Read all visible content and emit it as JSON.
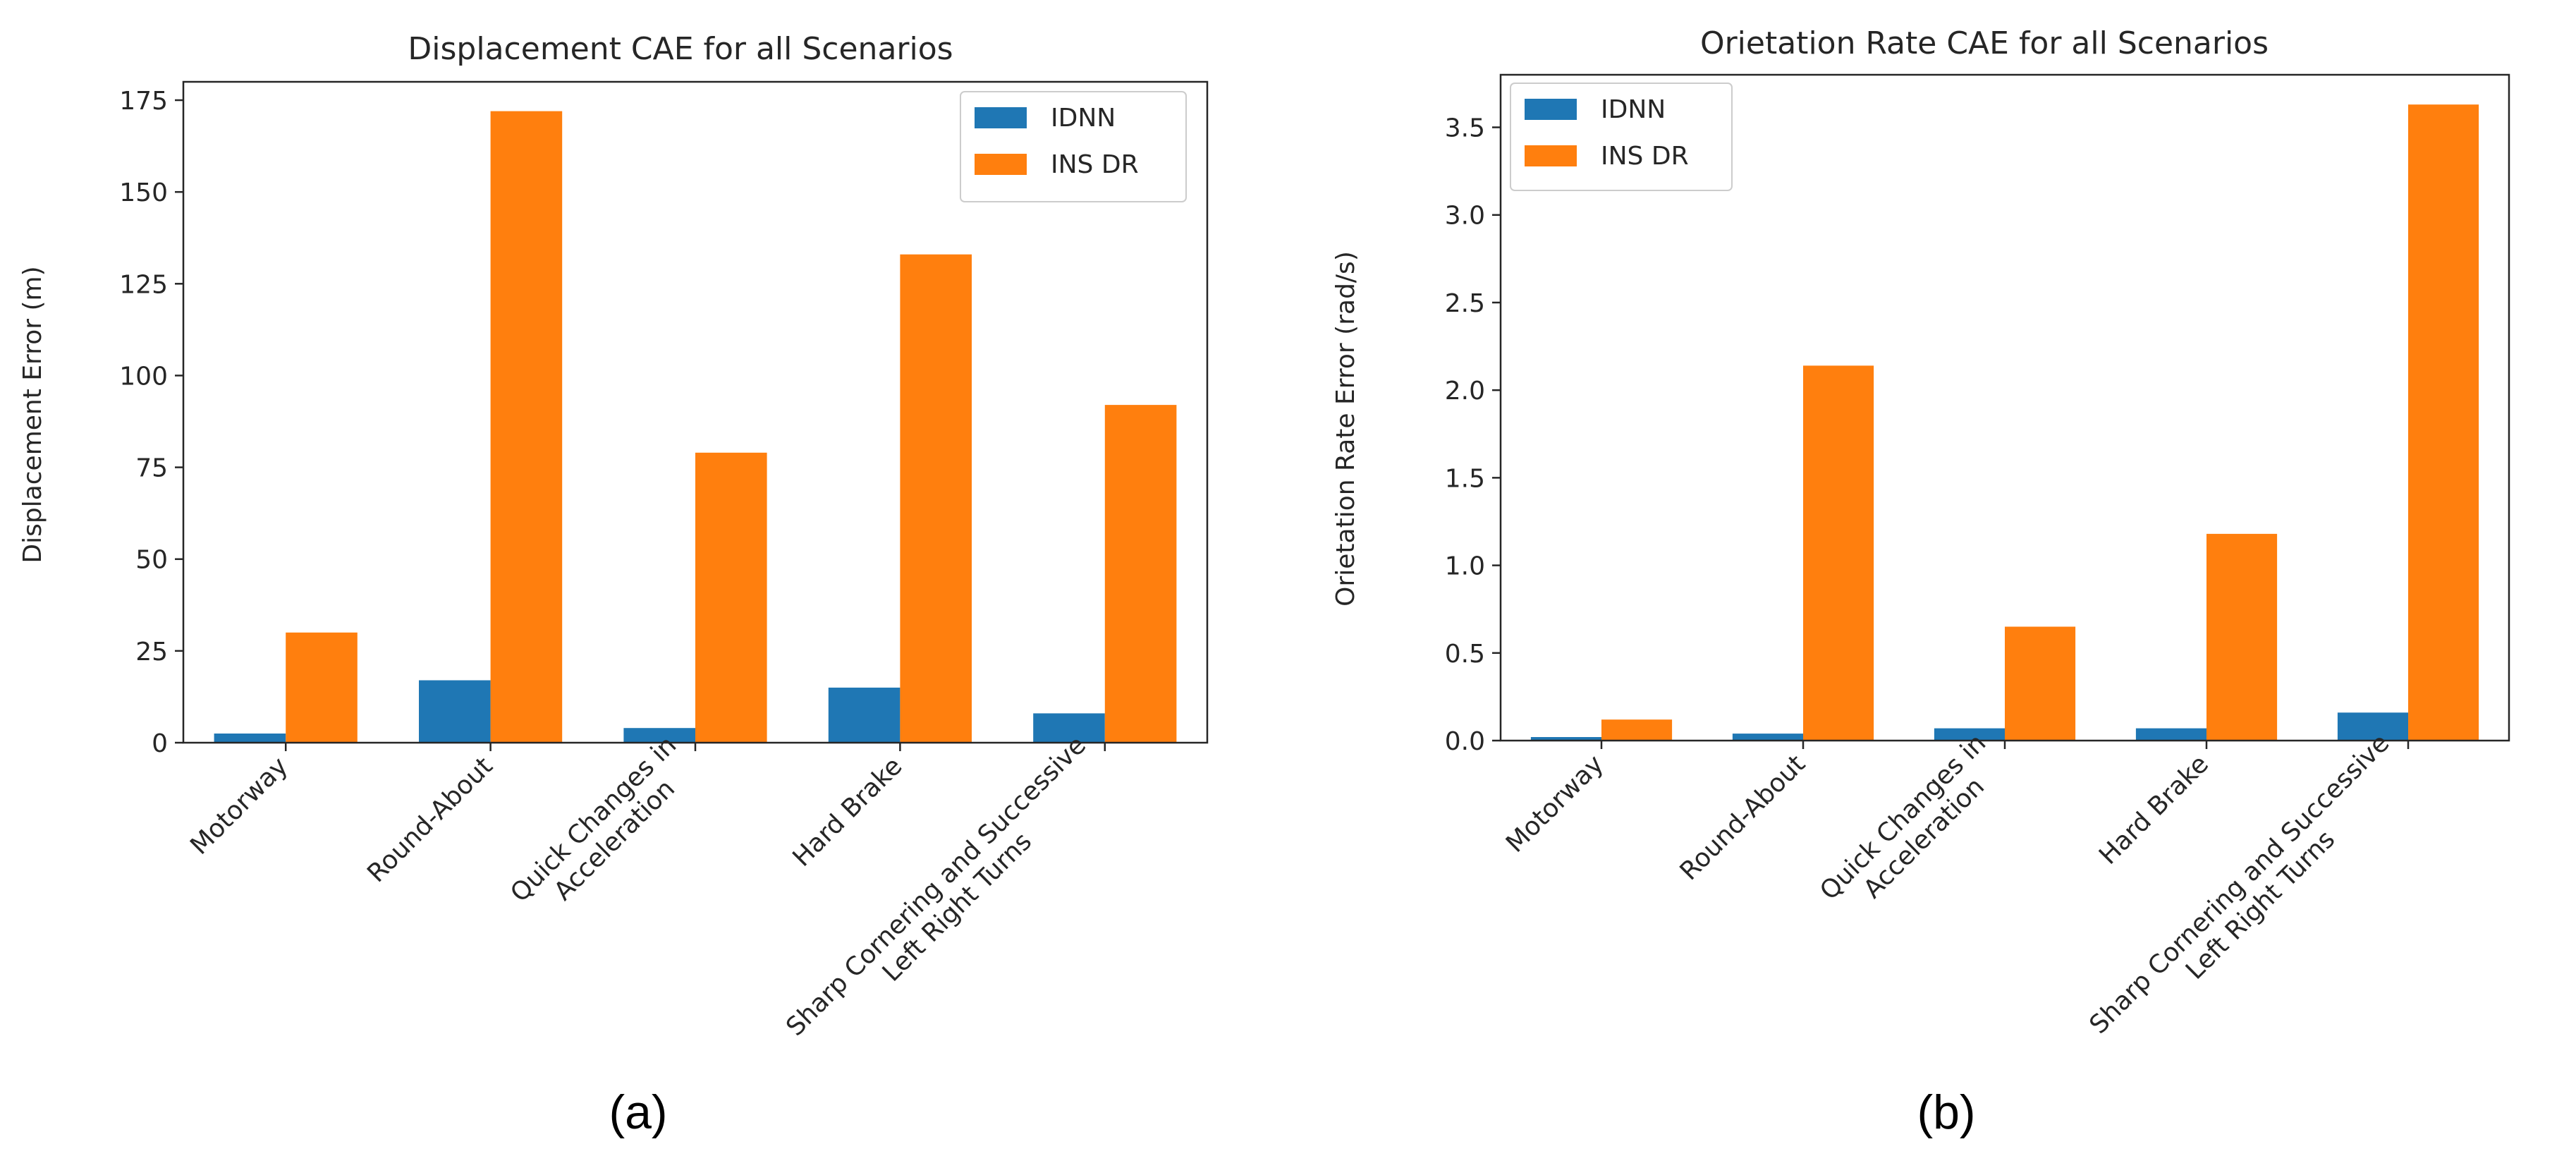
{
  "colors": {
    "IDNN": "#1f77b4",
    "INS DR": "#ff7f0e"
  },
  "chart_data": [
    {
      "type": "bar",
      "panel": "(a)",
      "title": "Displacement CAE for all Scenarios",
      "xlabel": "",
      "ylabel": "Displacement Error (m)",
      "ylim": [
        0,
        180
      ],
      "yticks": [
        0,
        25,
        50,
        75,
        100,
        125,
        150,
        175
      ],
      "legend_position": "top-right",
      "categories": [
        "Motorway",
        "Round-About",
        "Quick Changes in\nAcceleration",
        "Hard Brake",
        "Sharp Cornering and Successive\nLeft Right Turns"
      ],
      "series": [
        {
          "name": "IDNN",
          "values": [
            2.5,
            17,
            4,
            15,
            8
          ]
        },
        {
          "name": "INS DR",
          "values": [
            30,
            172,
            79,
            133,
            92
          ]
        }
      ]
    },
    {
      "type": "bar",
      "panel": "(b)",
      "title": "Orietation Rate CAE for all Scenarios",
      "xlabel": "",
      "ylabel": "Orietation Rate Error (rad/s)",
      "ylim": [
        0,
        3.8
      ],
      "yticks": [
        0.0,
        0.5,
        1.0,
        1.5,
        2.0,
        2.5,
        3.0,
        3.5
      ],
      "legend_position": "top-left",
      "categories": [
        "Motorway",
        "Round-About",
        "Quick Changes in\nAcceleration",
        "Hard Brake",
        "Sharp Cornering and Successive\nLeft Right Turns"
      ],
      "series": [
        {
          "name": "IDNN",
          "values": [
            0.02,
            0.04,
            0.07,
            0.07,
            0.16
          ]
        },
        {
          "name": "INS DR",
          "values": [
            0.12,
            2.14,
            0.65,
            1.18,
            3.63
          ]
        }
      ]
    }
  ]
}
